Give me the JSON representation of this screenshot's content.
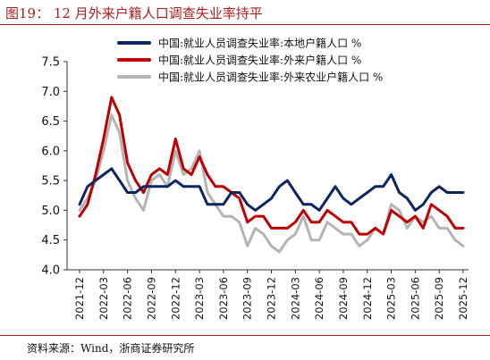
{
  "figure": {
    "title": "图19：  12 月外来户籍人口调查失业率持平",
    "source": "资料来源：Wind，浙商证券研究所"
  },
  "colors": {
    "local": "#0c2461",
    "migrant": "#c00000",
    "migrant_agri": "#b4b4b4",
    "accent": "#b01e1e"
  },
  "chart_data": {
    "type": "line",
    "title": "",
    "xlabel": "",
    "ylabel": "",
    "ylim": [
      4.0,
      7.5
    ],
    "yticks": [
      "4.0",
      "4.5",
      "5.0",
      "5.5",
      "6.0",
      "6.5",
      "7.0",
      "7.5"
    ],
    "xtick_labels": [
      "2021-12",
      "2022-03",
      "2022-06",
      "2022-09",
      "2022-12",
      "2023-03",
      "2023-06",
      "2023-09",
      "2023-12",
      "2024-03",
      "2024-06",
      "2024-09",
      "2024-12",
      "2025-03",
      "2025-06",
      "2025-09",
      "2025-12"
    ],
    "x": [
      "2021-12",
      "2022-01",
      "2022-02",
      "2022-03",
      "2022-04",
      "2022-05",
      "2022-06",
      "2022-07",
      "2022-08",
      "2022-09",
      "2022-10",
      "2022-11",
      "2022-12",
      "2023-01",
      "2023-02",
      "2023-03",
      "2023-04",
      "2023-05",
      "2023-06",
      "2023-07",
      "2023-08",
      "2023-09",
      "2023-10",
      "2023-11",
      "2023-12",
      "2024-01",
      "2024-02",
      "2024-03",
      "2024-04",
      "2024-05",
      "2024-06",
      "2024-07",
      "2024-08",
      "2024-09",
      "2024-10",
      "2024-11",
      "2024-12",
      "2025-01",
      "2025-02",
      "2025-03",
      "2025-04",
      "2025-05",
      "2025-06",
      "2025-07",
      "2025-08",
      "2025-09",
      "2025-10",
      "2025-11",
      "2025-12"
    ],
    "grid": false,
    "legend_position": "top",
    "series": [
      {
        "name": "中国:就业人员调查失业率:本地户籍人口 %",
        "color_key": "local",
        "values": [
          5.1,
          5.4,
          5.5,
          5.6,
          5.7,
          5.5,
          5.3,
          5.3,
          5.4,
          5.4,
          5.4,
          5.4,
          5.5,
          5.4,
          5.4,
          5.4,
          5.1,
          5.1,
          5.1,
          5.3,
          5.3,
          5.1,
          5.0,
          5.1,
          5.2,
          5.4,
          5.5,
          5.3,
          5.1,
          5.1,
          5.0,
          5.2,
          5.4,
          5.2,
          5.1,
          5.2,
          5.3,
          5.4,
          5.4,
          5.6,
          5.3,
          5.2,
          5.0,
          5.1,
          5.3,
          5.4,
          5.3,
          5.3,
          5.3
        ]
      },
      {
        "name": "中国:就业人员调查失业率:外来户籍人口 %",
        "color_key": "migrant",
        "values": [
          4.9,
          5.1,
          5.6,
          6.2,
          6.9,
          6.6,
          5.8,
          5.5,
          5.3,
          5.6,
          5.7,
          5.6,
          6.2,
          5.7,
          5.6,
          5.9,
          5.6,
          5.4,
          5.4,
          5.3,
          5.2,
          4.8,
          4.9,
          4.9,
          4.7,
          4.7,
          4.7,
          4.8,
          5.0,
          4.8,
          4.8,
          5.0,
          4.9,
          4.8,
          4.8,
          4.6,
          4.6,
          4.7,
          4.6,
          5.0,
          4.9,
          4.8,
          4.9,
          4.7,
          5.1,
          5.0,
          4.9,
          4.7,
          4.7
        ]
      },
      {
        "name": "中国:就业人员调查失业率:外来农业户籍人口 %",
        "color_key": "migrant_agri",
        "values": [
          5.0,
          5.2,
          5.5,
          6.0,
          6.6,
          6.3,
          5.5,
          5.2,
          5.0,
          5.5,
          5.6,
          5.4,
          6.0,
          5.6,
          5.7,
          6.0,
          5.3,
          5.1,
          4.9,
          4.9,
          4.8,
          4.4,
          4.7,
          4.6,
          4.4,
          4.3,
          4.5,
          4.6,
          4.9,
          4.5,
          4.5,
          4.8,
          4.7,
          4.6,
          4.6,
          4.4,
          4.5,
          4.7,
          4.6,
          5.1,
          5.0,
          4.7,
          4.9,
          4.8,
          4.9,
          4.7,
          4.7,
          4.5,
          4.4
        ]
      }
    ]
  }
}
